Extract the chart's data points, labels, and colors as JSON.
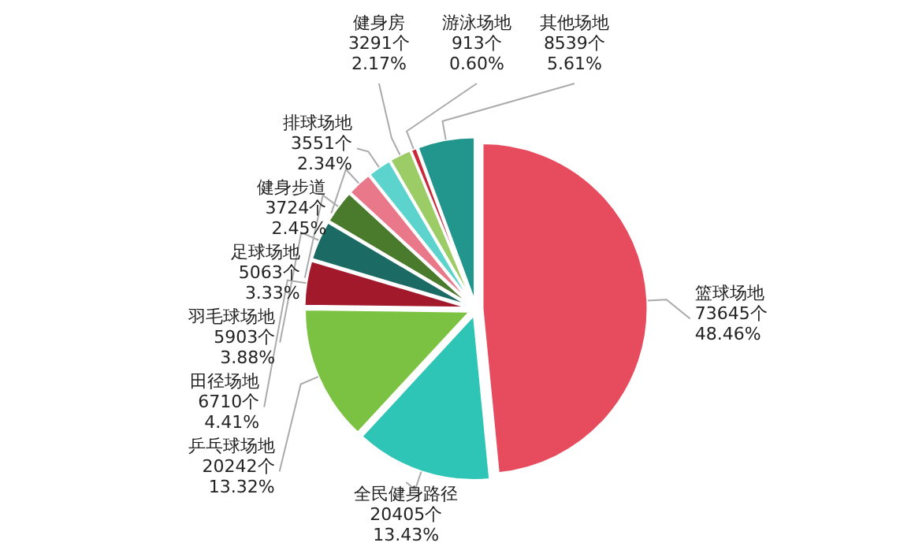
{
  "chart_data": {
    "type": "pie",
    "categories": [
      "篮球场地",
      "全民健身路径",
      "乒乓球场地",
      "田径场地",
      "羽毛球场地",
      "足球场地",
      "健身步道",
      "排球场地",
      "健身房",
      "游泳场地",
      "其他场地"
    ],
    "values": [
      73645,
      20405,
      20242,
      6710,
      5903,
      5063,
      3724,
      3551,
      3291,
      913,
      8539
    ],
    "value_labels": [
      "73645个\n48.46%",
      "20405个\n13.43%",
      "20242个\n13.32%",
      "6710个\n4.41%",
      "5903个\n3.88%",
      "5063个\n3.33%",
      "3724个\n2.45%",
      "3551个\n2.34%",
      "3291个\n2.17%",
      "913个\n0.60%",
      "8539个\n5.61%"
    ],
    "colors": [
      "#e74c5e",
      "#2ec4b6",
      "#7cc242",
      "#a2192b",
      "#1b6b64",
      "#4a7a2b",
      "#e8788a",
      "#5dd3cd",
      "#9ccc65",
      "#c8283a",
      "#22968d"
    ]
  }
}
